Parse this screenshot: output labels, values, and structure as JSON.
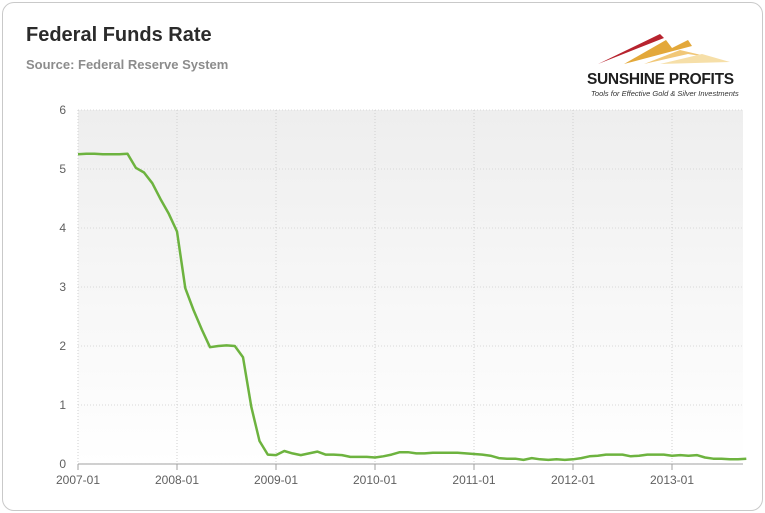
{
  "header": {
    "title": "Federal Funds Rate",
    "subtitle": "Source: Federal Reserve System"
  },
  "logo": {
    "name": "SUNSHINE PROFITS",
    "tagline": "Tools for Effective Gold & Silver Investments",
    "colors": [
      "#b7232e",
      "#e3a83a",
      "#f1c777"
    ]
  },
  "chart_data": {
    "type": "line",
    "title": "Federal Funds Rate",
    "subtitle": "Source: Federal Reserve System",
    "xlabel": "",
    "ylabel": "",
    "ylim": [
      0,
      6
    ],
    "yticks": [
      "0",
      "1",
      "2",
      "3",
      "4",
      "5",
      "6"
    ],
    "xticks": [
      "2007-01",
      "2008-01",
      "2009-01",
      "2010-01",
      "2011-01",
      "2012-01",
      "2013-01"
    ],
    "grid": true,
    "legend": "none",
    "line_color": "#6db33f",
    "series": [
      {
        "name": "",
        "x": [
          "2007-01",
          "2007-02",
          "2007-03",
          "2007-04",
          "2007-05",
          "2007-06",
          "2007-07",
          "2007-08",
          "2007-09",
          "2007-10",
          "2007-11",
          "2007-12",
          "2008-01",
          "2008-02",
          "2008-03",
          "2008-04",
          "2008-05",
          "2008-06",
          "2008-07",
          "2008-08",
          "2008-09",
          "2008-10",
          "2008-11",
          "2008-12",
          "2009-01",
          "2009-02",
          "2009-03",
          "2009-04",
          "2009-05",
          "2009-06",
          "2009-07",
          "2009-08",
          "2009-09",
          "2009-10",
          "2009-11",
          "2009-12",
          "2010-01",
          "2010-02",
          "2010-03",
          "2010-04",
          "2010-05",
          "2010-06",
          "2010-07",
          "2010-08",
          "2010-09",
          "2010-10",
          "2010-11",
          "2010-12",
          "2011-01",
          "2011-02",
          "2011-03",
          "2011-04",
          "2011-05",
          "2011-06",
          "2011-07",
          "2011-08",
          "2011-09",
          "2011-10",
          "2011-11",
          "2011-12",
          "2012-01",
          "2012-02",
          "2012-03",
          "2012-04",
          "2012-05",
          "2012-06",
          "2012-07",
          "2012-08",
          "2012-09",
          "2012-10",
          "2012-11",
          "2012-12",
          "2013-01",
          "2013-02",
          "2013-03",
          "2013-04",
          "2013-05",
          "2013-06",
          "2013-07",
          "2013-08",
          "2013-09",
          "2013-10"
        ],
        "values": [
          5.25,
          5.26,
          5.26,
          5.25,
          5.25,
          5.25,
          5.26,
          5.02,
          4.94,
          4.76,
          4.49,
          4.24,
          3.94,
          2.98,
          2.61,
          2.28,
          1.98,
          2.0,
          2.01,
          2.0,
          1.81,
          0.97,
          0.39,
          0.16,
          0.15,
          0.22,
          0.18,
          0.15,
          0.18,
          0.21,
          0.16,
          0.16,
          0.15,
          0.12,
          0.12,
          0.12,
          0.11,
          0.13,
          0.16,
          0.2,
          0.2,
          0.18,
          0.18,
          0.19,
          0.19,
          0.19,
          0.19,
          0.18,
          0.17,
          0.16,
          0.14,
          0.1,
          0.09,
          0.09,
          0.07,
          0.1,
          0.08,
          0.07,
          0.08,
          0.07,
          0.08,
          0.1,
          0.13,
          0.14,
          0.16,
          0.16,
          0.16,
          0.13,
          0.14,
          0.16,
          0.16,
          0.16,
          0.14,
          0.15,
          0.14,
          0.15,
          0.11,
          0.09,
          0.09,
          0.08,
          0.08,
          0.09
        ]
      }
    ]
  }
}
